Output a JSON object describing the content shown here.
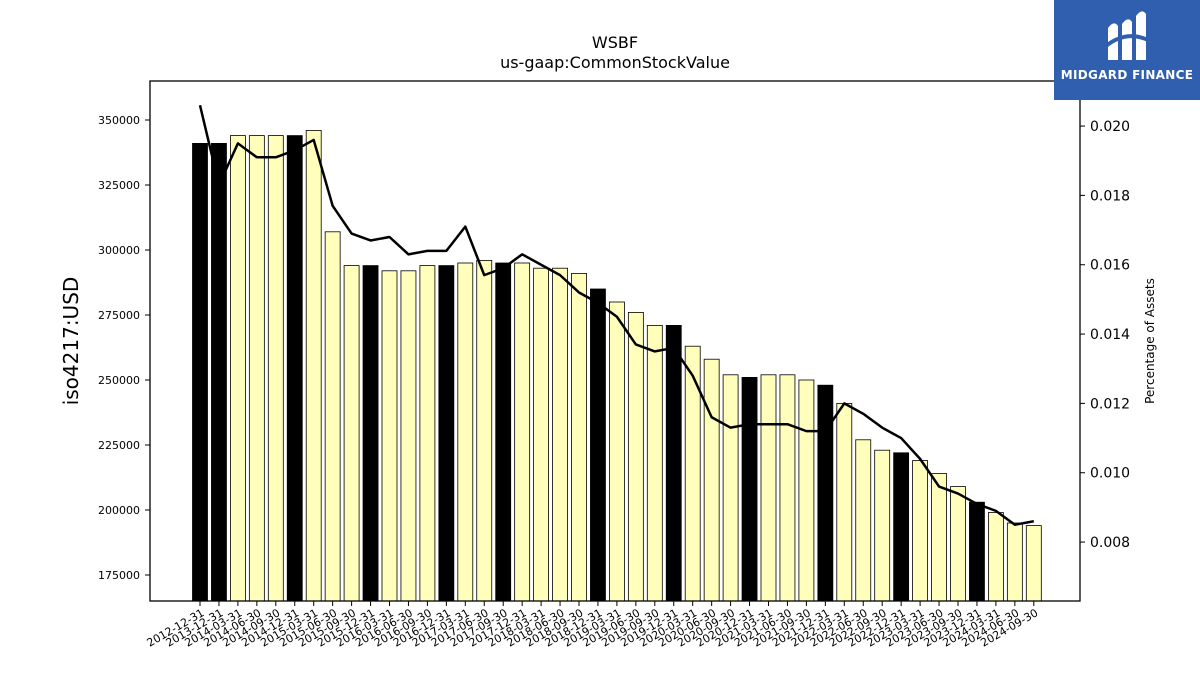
{
  "chart_data": {
    "type": "bar",
    "title": "WSBF",
    "subtitle": "us-gaap:CommonStockValue",
    "ylabel": "iso4217:USD",
    "y2label": "Percentage of Assets",
    "ylim": [
      165000,
      365000
    ],
    "y2lim": [
      0.0063,
      0.0213
    ],
    "yticks": [
      175000,
      200000,
      225000,
      250000,
      275000,
      300000,
      325000,
      350000
    ],
    "y2ticks": [
      "0.008",
      "0.010",
      "0.012",
      "0.014",
      "0.016",
      "0.018",
      "0.020"
    ],
    "categories": [
      "2012-12-31",
      "2013-12-31",
      "2014-03-31",
      "2014-06-30",
      "2014-09-30",
      "2014-12-31",
      "2015-03-31",
      "2015-06-30",
      "2015-09-30",
      "2015-12-31",
      "2016-03-31",
      "2016-06-30",
      "2016-09-30",
      "2016-12-31",
      "2017-03-31",
      "2017-06-30",
      "2017-09-30",
      "2017-12-31",
      "2018-03-31",
      "2018-06-30",
      "2018-09-30",
      "2018-12-31",
      "2019-03-31",
      "2019-06-30",
      "2019-09-30",
      "2019-12-31",
      "2020-03-31",
      "2020-06-30",
      "2020-09-30",
      "2020-12-31",
      "2021-03-31",
      "2021-06-30",
      "2021-09-30",
      "2021-12-31",
      "2022-03-31",
      "2022-06-30",
      "2022-09-30",
      "2022-12-31",
      "2023-03-31",
      "2023-06-30",
      "2023-09-30",
      "2023-12-31",
      "2024-03-31",
      "2024-06-30",
      "2024-09-30"
    ],
    "series": [
      {
        "values": [
          341000,
          341000,
          344000,
          344000,
          344000,
          344000,
          346000,
          307000,
          294000,
          294000,
          292000,
          292000,
          294000,
          294000,
          295000,
          296000,
          295000,
          295000,
          293000,
          293000,
          291000,
          285000,
          280000,
          276000,
          271000,
          271000,
          263000,
          258000,
          252000,
          251000,
          252000,
          252000,
          250000,
          248000,
          241000,
          227000,
          223000,
          222000,
          219000,
          214000,
          209000,
          203000,
          199000,
          195000,
          194000
        ],
        "highlight": [
          true,
          true,
          false,
          false,
          false,
          true,
          false,
          false,
          false,
          true,
          false,
          false,
          false,
          true,
          false,
          false,
          true,
          false,
          false,
          false,
          false,
          true,
          false,
          false,
          false,
          true,
          false,
          false,
          false,
          true,
          false,
          false,
          false,
          true,
          false,
          false,
          false,
          true,
          false,
          false,
          false,
          true,
          false,
          false,
          false
        ]
      },
      {
        "axis": "right",
        "values": [
          0.0206,
          0.0183,
          0.0195,
          0.0191,
          0.0191,
          0.0193,
          0.0196,
          0.0177,
          0.0169,
          0.0167,
          0.0168,
          0.0163,
          0.0164,
          0.0164,
          0.0171,
          0.0157,
          0.0159,
          0.0163,
          0.016,
          0.0157,
          0.0152,
          0.0149,
          0.0145,
          0.0137,
          0.0135,
          0.0136,
          0.0128,
          0.0116,
          0.0113,
          0.0114,
          0.0114,
          0.0114,
          0.0112,
          0.0112,
          0.012,
          0.0117,
          0.0113,
          0.011,
          0.0104,
          0.0096,
          0.0094,
          0.0091,
          0.0089,
          0.0085,
          0.0086
        ]
      }
    ],
    "colors": {
      "bar_highlight": "#000000",
      "bar_normal": "#ffffbb",
      "line": "#000000"
    }
  },
  "logo": {
    "text": "MIDGARD FINANCE",
    "color": "#2f5fae"
  }
}
